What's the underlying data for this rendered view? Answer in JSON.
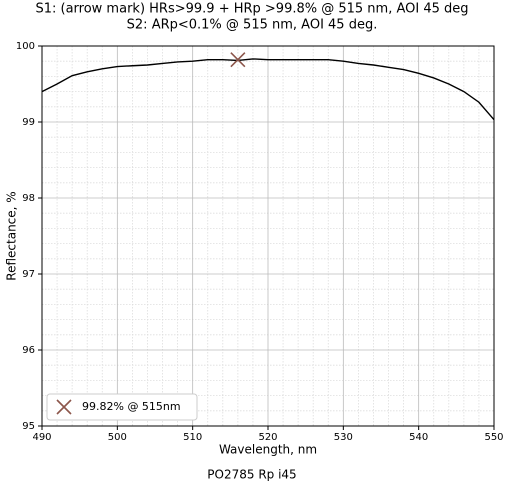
{
  "chart_data": {
    "type": "line",
    "title": "S1: (arrow mark) HRs>99.9 + HRp >99.8% @ 515 nm, AOI 45 deg",
    "subtitle": "S2: ARp<0.1% @ 515 nm, AOI 45 deg.",
    "x_label": "Wavelength, nm",
    "y_label": "Reflectance, %",
    "footer": "PO2785 Rp i45",
    "x": [
      490,
      492,
      494,
      496,
      498,
      500,
      502,
      504,
      506,
      508,
      510,
      512,
      514,
      516,
      518,
      520,
      522,
      524,
      526,
      528,
      530,
      532,
      534,
      536,
      538,
      540,
      542,
      544,
      546,
      548,
      550
    ],
    "series": [
      {
        "color": "#000000",
        "values": [
          99.4,
          99.5,
          99.61,
          99.66,
          99.7,
          99.73,
          99.74,
          99.75,
          99.77,
          99.79,
          99.8,
          99.82,
          99.82,
          99.81,
          99.83,
          99.82,
          99.82,
          99.82,
          99.82,
          99.82,
          99.8,
          99.77,
          99.75,
          99.72,
          99.69,
          99.64,
          99.58,
          99.5,
          99.4,
          99.26,
          99.03
        ]
      },
      {
        "name": "99.82% @ 515nm",
        "color": "#8c564b",
        "marker": "x",
        "x": [
          516
        ],
        "values": [
          99.82
        ]
      }
    ],
    "xlim": [
      490,
      550
    ],
    "ylim": [
      95,
      100
    ],
    "xticks": [
      490,
      500,
      510,
      520,
      530,
      540,
      550
    ],
    "yticks": [
      95,
      96,
      97,
      98,
      99,
      100
    ],
    "xminorticks": [
      492,
      494,
      496,
      498,
      502,
      504,
      506,
      508,
      512,
      514,
      516,
      518,
      522,
      524,
      526,
      528,
      532,
      534,
      536,
      538,
      542,
      544,
      546,
      548
    ],
    "yminorticks": [
      95.2,
      95.4,
      95.6,
      95.8,
      96.2,
      96.4,
      96.6,
      96.8,
      97.2,
      97.4,
      97.6,
      97.8,
      98.2,
      98.4,
      98.6,
      98.8,
      99.2,
      99.4,
      99.6,
      99.8
    ],
    "grid": true,
    "legend": "lower left"
  }
}
